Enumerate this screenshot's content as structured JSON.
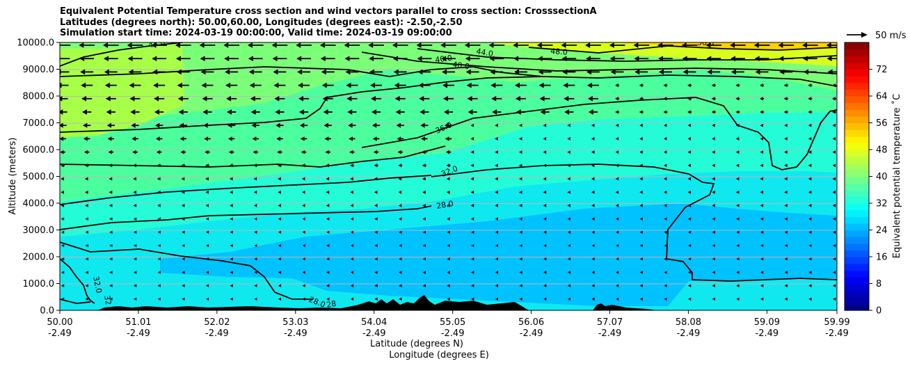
{
  "chart_data": {
    "type": "heatmap",
    "title_lines": [
      "Equivalent Potential Temperature cross section and wind vectors parallel to cross section: CrosssectionA",
      "Latitudes (degrees north): 50.00,60.00, Longitudes (degrees east): -2.50,-2.50",
      "Simulation start time: 2024-03-19 00:00:00, Valid time: 2024-03-19 09:00:00"
    ],
    "ylabel": "Altitude (meters)",
    "xlabel": "Latitude (degrees N)",
    "xlabel2": "Longitude (degrees E)",
    "ylim": [
      0,
      10000
    ],
    "yticks": [
      "0.0",
      "1000.0",
      "2000.0",
      "3000.0",
      "4000.0",
      "5000.0",
      "6000.0",
      "7000.0",
      "8000.0",
      "9000.0",
      "10000.0"
    ],
    "xlim": [
      50.0,
      59.99
    ],
    "xticks_lat": [
      "50.00",
      "51.01",
      "52.02",
      "53.03",
      "54.04",
      "55.05",
      "56.06",
      "57.07",
      "58.08",
      "59.09",
      "59.99"
    ],
    "xticks_lon": [
      "-2.49",
      "-2.49",
      "-2.49",
      "-2.49",
      "-2.49",
      "-2.49",
      "-2.49",
      "-2.49",
      "-2.49",
      "-2.49",
      "-2.49"
    ],
    "grid": "horizontal",
    "colorbar": {
      "label": "Equivalent potential temperature ˚C",
      "range": [
        0,
        80
      ],
      "ticks": [
        "0",
        "8",
        "16",
        "24",
        "32",
        "40",
        "48",
        "56",
        "64",
        "72"
      ]
    },
    "contour_labels": [
      "44.0",
      "44.0",
      "40.0",
      "40.0",
      "44.0",
      "48.0",
      "50.0",
      "36.0",
      "32.0",
      "28.0",
      "32.0",
      "32",
      "28.0",
      "28"
    ],
    "wind_key": "50 m/s",
    "colors": {
      "c24": "#00c2ff",
      "c28": "#10e8f0",
      "c32": "#24fcd8",
      "c36": "#4cff9e",
      "c40": "#7cff78",
      "c44": "#a8ff48",
      "c48": "#d8ff20",
      "c52": "#ffd000",
      "terrain": "#000000"
    }
  }
}
